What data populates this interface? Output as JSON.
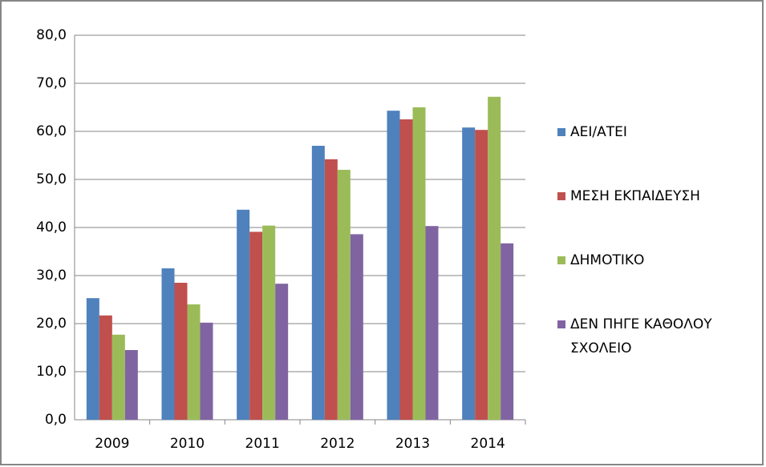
{
  "chart_data": {
    "type": "bar",
    "categories": [
      "2009",
      "2010",
      "2011",
      "2012",
      "2013",
      "2014"
    ],
    "series": [
      {
        "name": "ΑΕΙ/ΑΤΕΙ",
        "color": "#4f81bd",
        "values": [
          25.3,
          31.5,
          43.7,
          57.0,
          64.3,
          60.8
        ]
      },
      {
        "name": "ΜΕΣΗ ΕΚΠΑΙΔΕΥΣΗ",
        "color": "#c0504d",
        "values": [
          21.7,
          28.5,
          39.1,
          54.2,
          62.5,
          60.3
        ]
      },
      {
        "name": "ΔΗΜΟΤΙΚΟ",
        "color": "#9bbb59",
        "values": [
          17.7,
          24.0,
          40.4,
          52.0,
          65.0,
          67.2
        ]
      },
      {
        "name": "ΔΕΝ ΠΗΓΕ ΚΑΘΟΛΟΥ ΣΧΟΛΕΙΟ",
        "color": "#8064a2",
        "values": [
          14.5,
          20.2,
          28.3,
          38.6,
          40.3,
          36.7
        ]
      }
    ],
    "ylim": [
      0,
      80
    ],
    "yticks": [
      {
        "value": 0,
        "label": "0,0"
      },
      {
        "value": 10,
        "label": "10,0"
      },
      {
        "value": 20,
        "label": "20,0"
      },
      {
        "value": 30,
        "label": "30,0"
      },
      {
        "value": 40,
        "label": "40,0"
      },
      {
        "value": 50,
        "label": "50,0"
      },
      {
        "value": 60,
        "label": "60,0"
      },
      {
        "value": 70,
        "label": "70,0"
      },
      {
        "value": 80,
        "label": "80,0"
      }
    ],
    "grid": true,
    "legend": "right"
  }
}
